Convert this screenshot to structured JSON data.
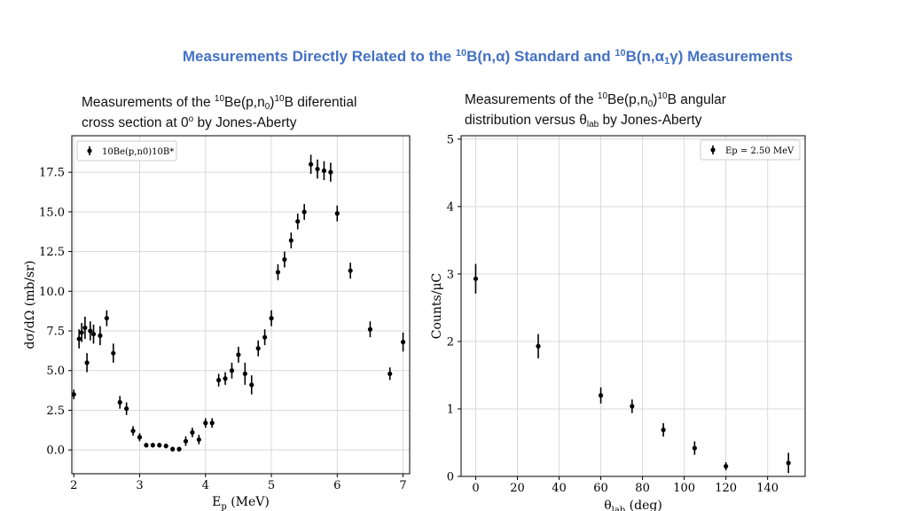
{
  "slide": {
    "title": {
      "pre": "Measurements Directly Related to the ",
      "sup1": "10",
      "mid1": "B(n,",
      "alpha1": "α",
      "mid2": ") Standard and ",
      "sup2": "10",
      "mid3": "B(n,",
      "alpha2": "α",
      "sub1": "1",
      "gamma": "γ",
      "post": ") Measurements"
    },
    "caption_left": {
      "t1": "Measurements of the ",
      "s1": "10",
      "t2": "Be(p,n",
      "b1": "0",
      "t3": ")",
      "s2": "10",
      "t4": "B diferential",
      "t5": "cross section at 0",
      "s3": "o",
      "t6": " by Jones-Aberty"
    },
    "caption_right": {
      "t1": "Measurements of the ",
      "s1": "10",
      "t2": "Be(p,n",
      "b1": "0",
      "t3": ")",
      "s2": "10",
      "t4": "B angular",
      "t5": "distribution versus θ",
      "b2": "lab",
      "t6": " by Jones-Aberty"
    }
  },
  "chart_data": [
    {
      "type": "scatter",
      "xlabel": "Ep (MeV)",
      "ylabel": "dσ/dΩ (mb/sr)",
      "xlim": [
        1.97,
        7.1
      ],
      "ylim": [
        -1.5,
        19.8
      ],
      "xticks": [
        2,
        3,
        4,
        5,
        6,
        7
      ],
      "yticks": [
        0.0,
        2.5,
        5.0,
        7.5,
        10.0,
        12.5,
        15.0,
        17.5
      ],
      "ytick_labels": [
        "0.0",
        "2.5",
        "5.0",
        "7.5",
        "10.0",
        "12.5",
        "15.0",
        "17.5"
      ],
      "grid": true,
      "legend_position": "top-left",
      "series": [
        {
          "name": "10Be(p,n0)10B*",
          "x": [
            2.0,
            2.08,
            2.12,
            2.17,
            2.2,
            2.25,
            2.3,
            2.4,
            2.5,
            2.6,
            2.7,
            2.8,
            2.9,
            3.0,
            3.1,
            3.2,
            3.3,
            3.4,
            3.5,
            3.6,
            3.7,
            3.8,
            3.9,
            4.0,
            4.1,
            4.2,
            4.3,
            4.4,
            4.5,
            4.6,
            4.7,
            4.8,
            4.9,
            5.0,
            5.1,
            5.2,
            5.3,
            5.4,
            5.5,
            5.6,
            5.7,
            5.8,
            5.9,
            6.0,
            6.2,
            6.5,
            6.8,
            7.0
          ],
          "y": [
            3.5,
            7.0,
            7.4,
            7.7,
            5.5,
            7.5,
            7.3,
            7.2,
            8.3,
            6.1,
            3.0,
            2.6,
            1.2,
            0.8,
            0.3,
            0.3,
            0.3,
            0.25,
            0.05,
            0.05,
            0.55,
            1.1,
            0.65,
            1.7,
            1.7,
            4.4,
            4.5,
            5.0,
            6.0,
            4.8,
            4.1,
            6.4,
            7.1,
            8.3,
            11.2,
            12.0,
            13.2,
            14.4,
            15.0,
            18.0,
            17.7,
            17.6,
            17.5,
            14.9,
            11.3,
            7.6,
            4.8,
            6.8
          ],
          "yerr": [
            0.3,
            0.6,
            0.6,
            0.7,
            0.6,
            0.6,
            0.6,
            0.6,
            0.5,
            0.6,
            0.4,
            0.4,
            0.3,
            0.25,
            0.15,
            0.15,
            0.15,
            0.15,
            0.15,
            0.15,
            0.3,
            0.3,
            0.3,
            0.3,
            0.3,
            0.4,
            0.4,
            0.5,
            0.5,
            0.7,
            0.6,
            0.5,
            0.5,
            0.5,
            0.5,
            0.5,
            0.5,
            0.5,
            0.5,
            0.6,
            0.6,
            0.6,
            0.6,
            0.5,
            0.5,
            0.5,
            0.4,
            0.6
          ]
        }
      ]
    },
    {
      "type": "scatter",
      "xlabel": "θlab (deg)",
      "ylabel": "Counts/μC",
      "xlim": [
        -7,
        158
      ],
      "ylim": [
        0,
        5.05
      ],
      "xticks": [
        0,
        20,
        40,
        60,
        80,
        100,
        120,
        140
      ],
      "yticks": [
        0,
        1,
        2,
        3,
        4,
        5
      ],
      "ytick_labels": [
        "0",
        "1",
        "2",
        "3",
        "4",
        "5"
      ],
      "grid": true,
      "legend_position": "top-right",
      "series": [
        {
          "name": "Ep = 2.50 MeV",
          "x": [
            0,
            30,
            60,
            75,
            90,
            105,
            120,
            150
          ],
          "y": [
            2.93,
            1.93,
            1.2,
            1.04,
            0.69,
            0.42,
            0.15,
            0.2
          ],
          "yerr": [
            0.22,
            0.18,
            0.12,
            0.1,
            0.1,
            0.1,
            0.06,
            0.15
          ]
        }
      ]
    }
  ]
}
